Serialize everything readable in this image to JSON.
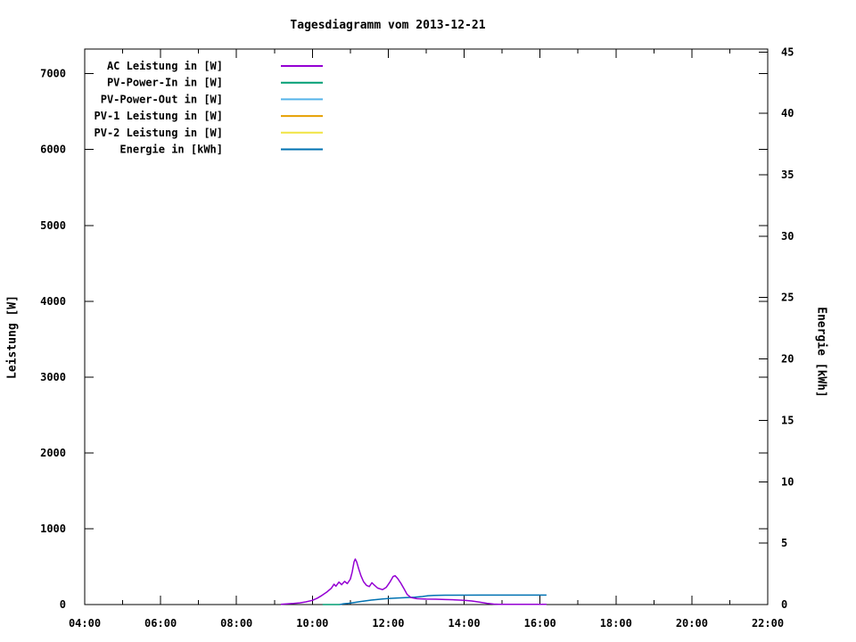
{
  "window": {
    "background": "#ffffff",
    "foreground": "#000000"
  },
  "chart_data": {
    "type": "line",
    "title": "Tagesdiagramm vom 2013-12-21",
    "xlabel": "",
    "ylabel": "Leistung [W]",
    "y2label": "Energie [kWh]",
    "x_axis": {
      "unit": "time_of_day",
      "range_hours": [
        4,
        22
      ],
      "major_ticks": [
        {
          "hour": 4,
          "label": "04:00"
        },
        {
          "hour": 6,
          "label": "06:00"
        },
        {
          "hour": 8,
          "label": "08:00"
        },
        {
          "hour": 10,
          "label": "10:00"
        },
        {
          "hour": 12,
          "label": "12:00"
        },
        {
          "hour": 14,
          "label": "14:00"
        },
        {
          "hour": 16,
          "label": "16:00"
        },
        {
          "hour": 18,
          "label": "18:00"
        },
        {
          "hour": 20,
          "label": "20:00"
        },
        {
          "hour": 22,
          "label": "22:00"
        }
      ],
      "minor_tick_hours": [
        5,
        7,
        9,
        11,
        13,
        15,
        17,
        19,
        21
      ]
    },
    "y_left_axis": {
      "label": "Leistung [W]",
      "range": [
        0,
        7326
      ],
      "ticks": [
        0,
        1000,
        2000,
        3000,
        4000,
        5000,
        6000,
        7000
      ]
    },
    "y_right_axis": {
      "label": "Energie [kWh]",
      "range": [
        0,
        45.25
      ],
      "ticks": [
        0,
        5,
        10,
        15,
        20,
        25,
        30,
        35,
        40,
        45
      ]
    },
    "grid": false,
    "legend_position": "top-left-inside",
    "series": [
      {
        "name": "AC Leistung in [W]",
        "color": "#9400d3",
        "axis": "left",
        "points": [
          [
            9.17,
            3
          ],
          [
            9.33,
            8
          ],
          [
            9.5,
            14
          ],
          [
            9.67,
            22
          ],
          [
            9.83,
            35
          ],
          [
            10.0,
            55
          ],
          [
            10.13,
            85
          ],
          [
            10.25,
            120
          ],
          [
            10.38,
            165
          ],
          [
            10.5,
            215
          ],
          [
            10.57,
            268
          ],
          [
            10.62,
            242
          ],
          [
            10.7,
            296
          ],
          [
            10.77,
            262
          ],
          [
            10.85,
            306
          ],
          [
            10.92,
            276
          ],
          [
            11.0,
            335
          ],
          [
            11.05,
            430
          ],
          [
            11.1,
            565
          ],
          [
            11.13,
            600
          ],
          [
            11.17,
            560
          ],
          [
            11.22,
            470
          ],
          [
            11.28,
            380
          ],
          [
            11.35,
            300
          ],
          [
            11.43,
            252
          ],
          [
            11.5,
            237
          ],
          [
            11.57,
            288
          ],
          [
            11.63,
            258
          ],
          [
            11.72,
            218
          ],
          [
            11.85,
            196
          ],
          [
            11.95,
            228
          ],
          [
            12.05,
            302
          ],
          [
            12.13,
            372
          ],
          [
            12.18,
            380
          ],
          [
            12.25,
            342
          ],
          [
            12.33,
            282
          ],
          [
            12.42,
            205
          ],
          [
            12.5,
            132
          ],
          [
            12.6,
            92
          ],
          [
            12.75,
            78
          ],
          [
            13.0,
            72
          ],
          [
            13.25,
            70
          ],
          [
            13.5,
            66
          ],
          [
            13.75,
            62
          ],
          [
            14.0,
            57
          ],
          [
            14.2,
            47
          ],
          [
            14.4,
            33
          ],
          [
            14.6,
            16
          ],
          [
            14.78,
            6
          ],
          [
            14.92,
            2
          ],
          [
            15.5,
            2
          ],
          [
            16.17,
            2
          ]
        ]
      },
      {
        "name": "PV-Power-In in [W]",
        "color": "#009e73",
        "axis": "left",
        "points": [
          [
            10.27,
            0
          ],
          [
            10.72,
            0
          ]
        ]
      },
      {
        "name": "PV-Power-Out in [W]",
        "color": "#56b4e9",
        "axis": "left",
        "points": []
      },
      {
        "name": "PV-1 Leistung in [W]",
        "color": "#e69f00",
        "axis": "left",
        "points": []
      },
      {
        "name": "PV-2 Leistung in [W]",
        "color": "#f0e442",
        "axis": "left",
        "points": []
      },
      {
        "name": "Energie in [kWh]",
        "color": "#0072b2",
        "axis": "right",
        "points": [
          [
            10.72,
            0.0
          ],
          [
            10.8,
            0.05
          ],
          [
            10.95,
            0.1
          ],
          [
            11.1,
            0.17
          ],
          [
            11.25,
            0.24
          ],
          [
            11.4,
            0.3
          ],
          [
            11.55,
            0.36
          ],
          [
            11.7,
            0.41
          ],
          [
            11.85,
            0.45
          ],
          [
            12.0,
            0.49
          ],
          [
            12.2,
            0.52
          ],
          [
            12.45,
            0.56
          ],
          [
            12.7,
            0.6
          ],
          [
            12.9,
            0.65
          ],
          [
            13.05,
            0.72
          ],
          [
            13.2,
            0.75
          ],
          [
            13.5,
            0.76
          ],
          [
            14.45,
            0.77
          ],
          [
            16.17,
            0.77
          ]
        ]
      }
    ]
  }
}
